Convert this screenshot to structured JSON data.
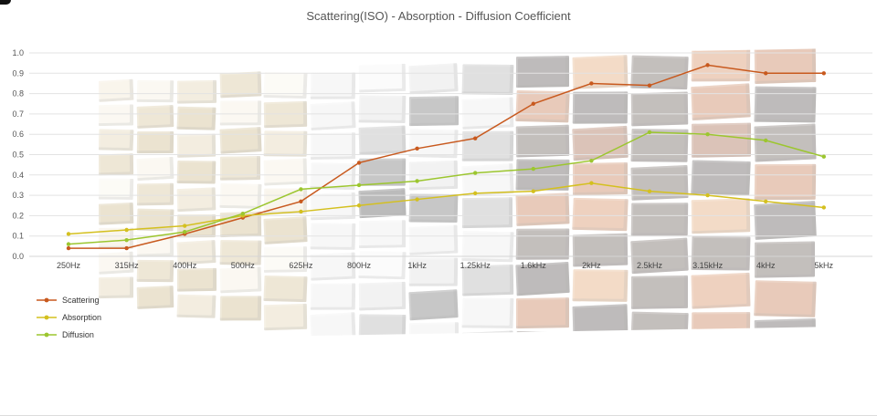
{
  "chart_data": {
    "type": "line",
    "title": "Scattering(ISO) - Absorption - Diffusion Coefficient",
    "categories": [
      "250Hz",
      "315Hz",
      "400Hz",
      "500Hz",
      "625Hz",
      "800Hz",
      "1kHz",
      "1.25kHz",
      "1.6kHz",
      "2kHz",
      "2.5kHz",
      "3.15kHz",
      "4kHz",
      "5kHz"
    ],
    "series": [
      {
        "name": "Scattering",
        "color": "#c8591e",
        "values": [
          0.04,
          0.04,
          0.11,
          0.19,
          0.27,
          0.46,
          0.53,
          0.58,
          0.75,
          0.85,
          0.84,
          0.94,
          0.9,
          0.9
        ]
      },
      {
        "name": "Absorption",
        "color": "#d4c01f",
        "values": [
          0.11,
          0.13,
          0.15,
          0.2,
          0.22,
          0.25,
          0.28,
          0.31,
          0.32,
          0.36,
          0.32,
          0.3,
          0.27,
          0.24
        ]
      },
      {
        "name": "Diffusion",
        "color": "#9cc62f",
        "values": [
          0.06,
          0.08,
          0.12,
          0.21,
          0.33,
          0.35,
          0.37,
          0.41,
          0.43,
          0.47,
          0.61,
          0.6,
          0.57,
          0.49
        ]
      }
    ],
    "ylim": [
      0,
      1.0
    ],
    "ytick_step": 0.1,
    "grid": true,
    "legend_position": "bottom-left",
    "grid_color": "#e3e3e3",
    "axis_label_color": "#555"
  },
  "background_art": {
    "description": "faded photo of a wooden acoustic diffuser (mosaic of cube blocks) behind the plot",
    "opacity": 0.3,
    "palette_left": [
      "#ecdfc2",
      "#f3ebd6",
      "#d9c79a",
      "#c9b27a",
      "#f7f2e4",
      "#bfa568"
    ],
    "palette_mid": [
      "#f2f2f2",
      "#d6d6d6",
      "#9a9a9a",
      "#4a4a4a",
      "#202020",
      "#e8e8e8"
    ],
    "palette_right": [
      "#c96a2f",
      "#b4541f",
      "#8a3c18",
      "#2b2320",
      "#d98b4a",
      "#3c2e26"
    ]
  }
}
